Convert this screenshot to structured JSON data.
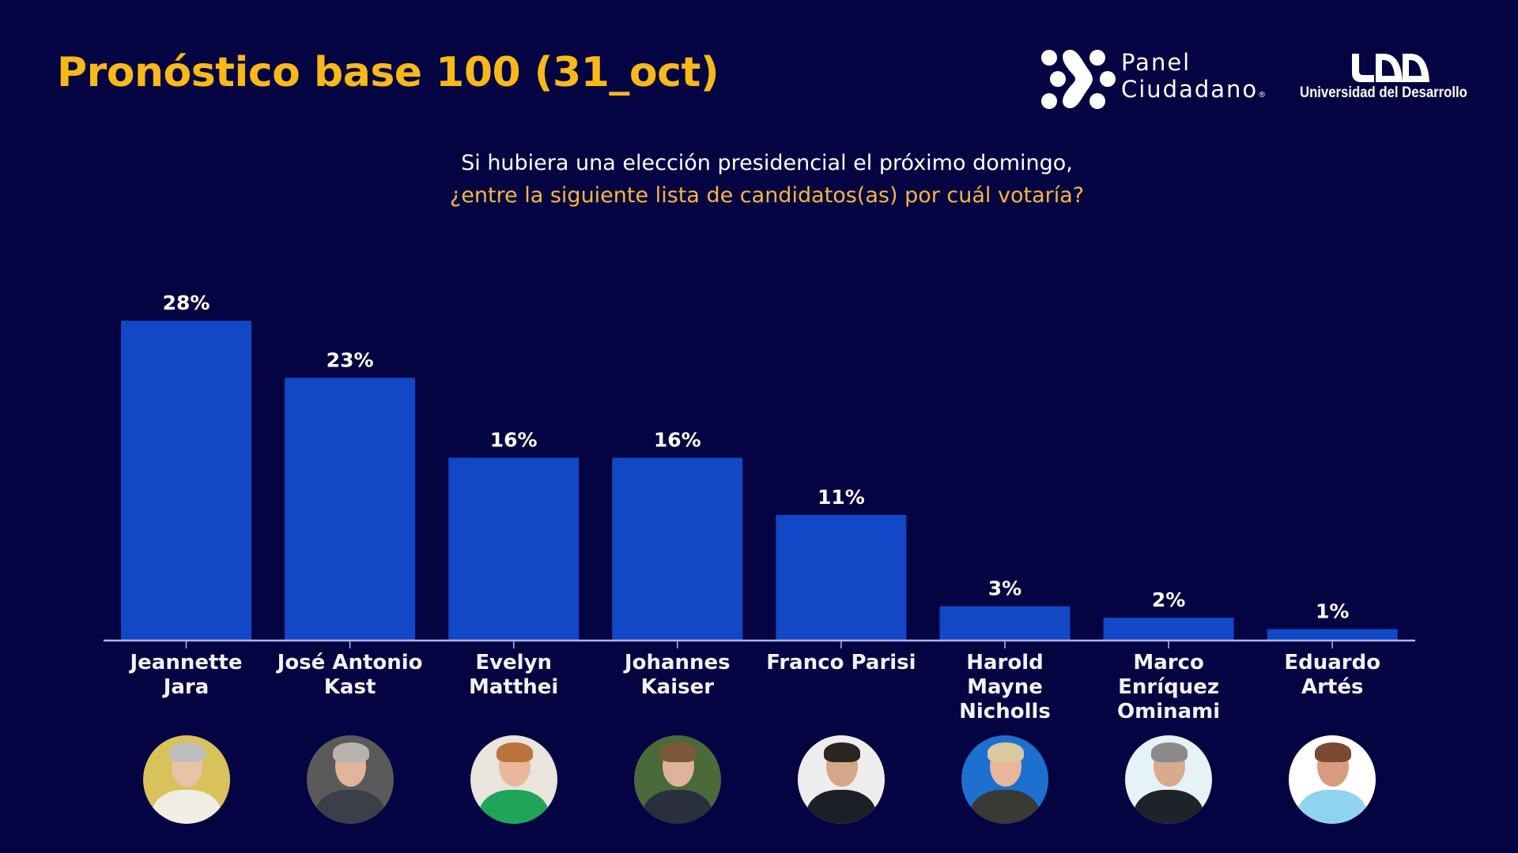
{
  "header": {
    "title": "Pronóstico base 100 (31_oct)",
    "logos": {
      "panel_ciudadano": {
        "icon": "panel-ciudadano-logo-icon",
        "line1": "Panel",
        "line2": "Ciudadano",
        "registered": "®"
      },
      "udd": {
        "icon": "udd-logo-icon",
        "text": "Universidad del Desarrollo"
      }
    }
  },
  "question": {
    "line1": "Si hubiera una elección presidencial el próximo domingo,",
    "line2": "¿entre la siguiente lista de candidatos(as) por cuál votaría?"
  },
  "colors": {
    "background": "#050443",
    "title": "#f9b81a",
    "question_highlight": "#f6b73c",
    "bar": "#1247c6",
    "axis": "#aeb4f2"
  },
  "chart_data": {
    "type": "bar",
    "title": "Pronóstico base 100 (31_oct)",
    "subtitle": "Si hubiera una elección presidencial el próximo domingo, ¿entre la siguiente lista de candidatos(as) por cuál votaría?",
    "xlabel": "",
    "ylabel": "",
    "ylim": [
      0,
      28
    ],
    "grid": false,
    "legend": "none",
    "categories": [
      [
        "Jeannette",
        "Jara"
      ],
      [
        "José Antonio",
        "Kast"
      ],
      [
        "Evelyn",
        "Matthei"
      ],
      [
        "Johannes",
        "Kaiser"
      ],
      [
        "Franco Parisi"
      ],
      [
        "Harold",
        "Mayne",
        "Nicholls"
      ],
      [
        "Marco",
        "Enríquez",
        "Ominami"
      ],
      [
        "Eduardo",
        "Artés"
      ]
    ],
    "values": [
      28,
      23,
      16,
      16,
      11,
      3,
      2,
      1
    ],
    "value_labels": [
      "28%",
      "23%",
      "16%",
      "16%",
      "11%",
      "3%",
      "2%",
      "1%"
    ]
  },
  "photos": [
    {
      "alt": "Jeannette Jara photo",
      "bg": "#d9c25a",
      "skin": "#e8c3a8",
      "hair": "#bdbdbd",
      "cloth": "#f1ece4"
    },
    {
      "alt": "José Antonio Kast photo",
      "bg": "#5a5a5a",
      "skin": "#e2b49a",
      "hair": "#b9b3ad",
      "cloth": "#3b3f49"
    },
    {
      "alt": "Evelyn Matthei photo",
      "bg": "#e9e4dc",
      "skin": "#e9b89c",
      "hair": "#b9733c",
      "cloth": "#1ea55a"
    },
    {
      "alt": "Johannes Kaiser photo",
      "bg": "#4a6a3a",
      "skin": "#deb39b",
      "hair": "#7a5a38",
      "cloth": "#2a2f3e"
    },
    {
      "alt": "Franco Parisi photo",
      "bg": "#ededed",
      "skin": "#d5a68a",
      "hair": "#2b2622",
      "cloth": "#1d1f27"
    },
    {
      "alt": "Harold Mayne Nicholls photo",
      "bg": "#1d6fd0",
      "skin": "#e6b79b",
      "hair": "#d9c9a0",
      "cloth": "#3a3a34"
    },
    {
      "alt": "Marco Enríquez Ominami photo",
      "bg": "#e5f3f7",
      "skin": "#d8aa8e",
      "hair": "#8a8a8a",
      "cloth": "#20222a"
    },
    {
      "alt": "Eduardo Artés photo",
      "bg": "#ffffff",
      "skin": "#d99b80",
      "hair": "#7a4a32",
      "cloth": "#8fd3ee"
    }
  ]
}
